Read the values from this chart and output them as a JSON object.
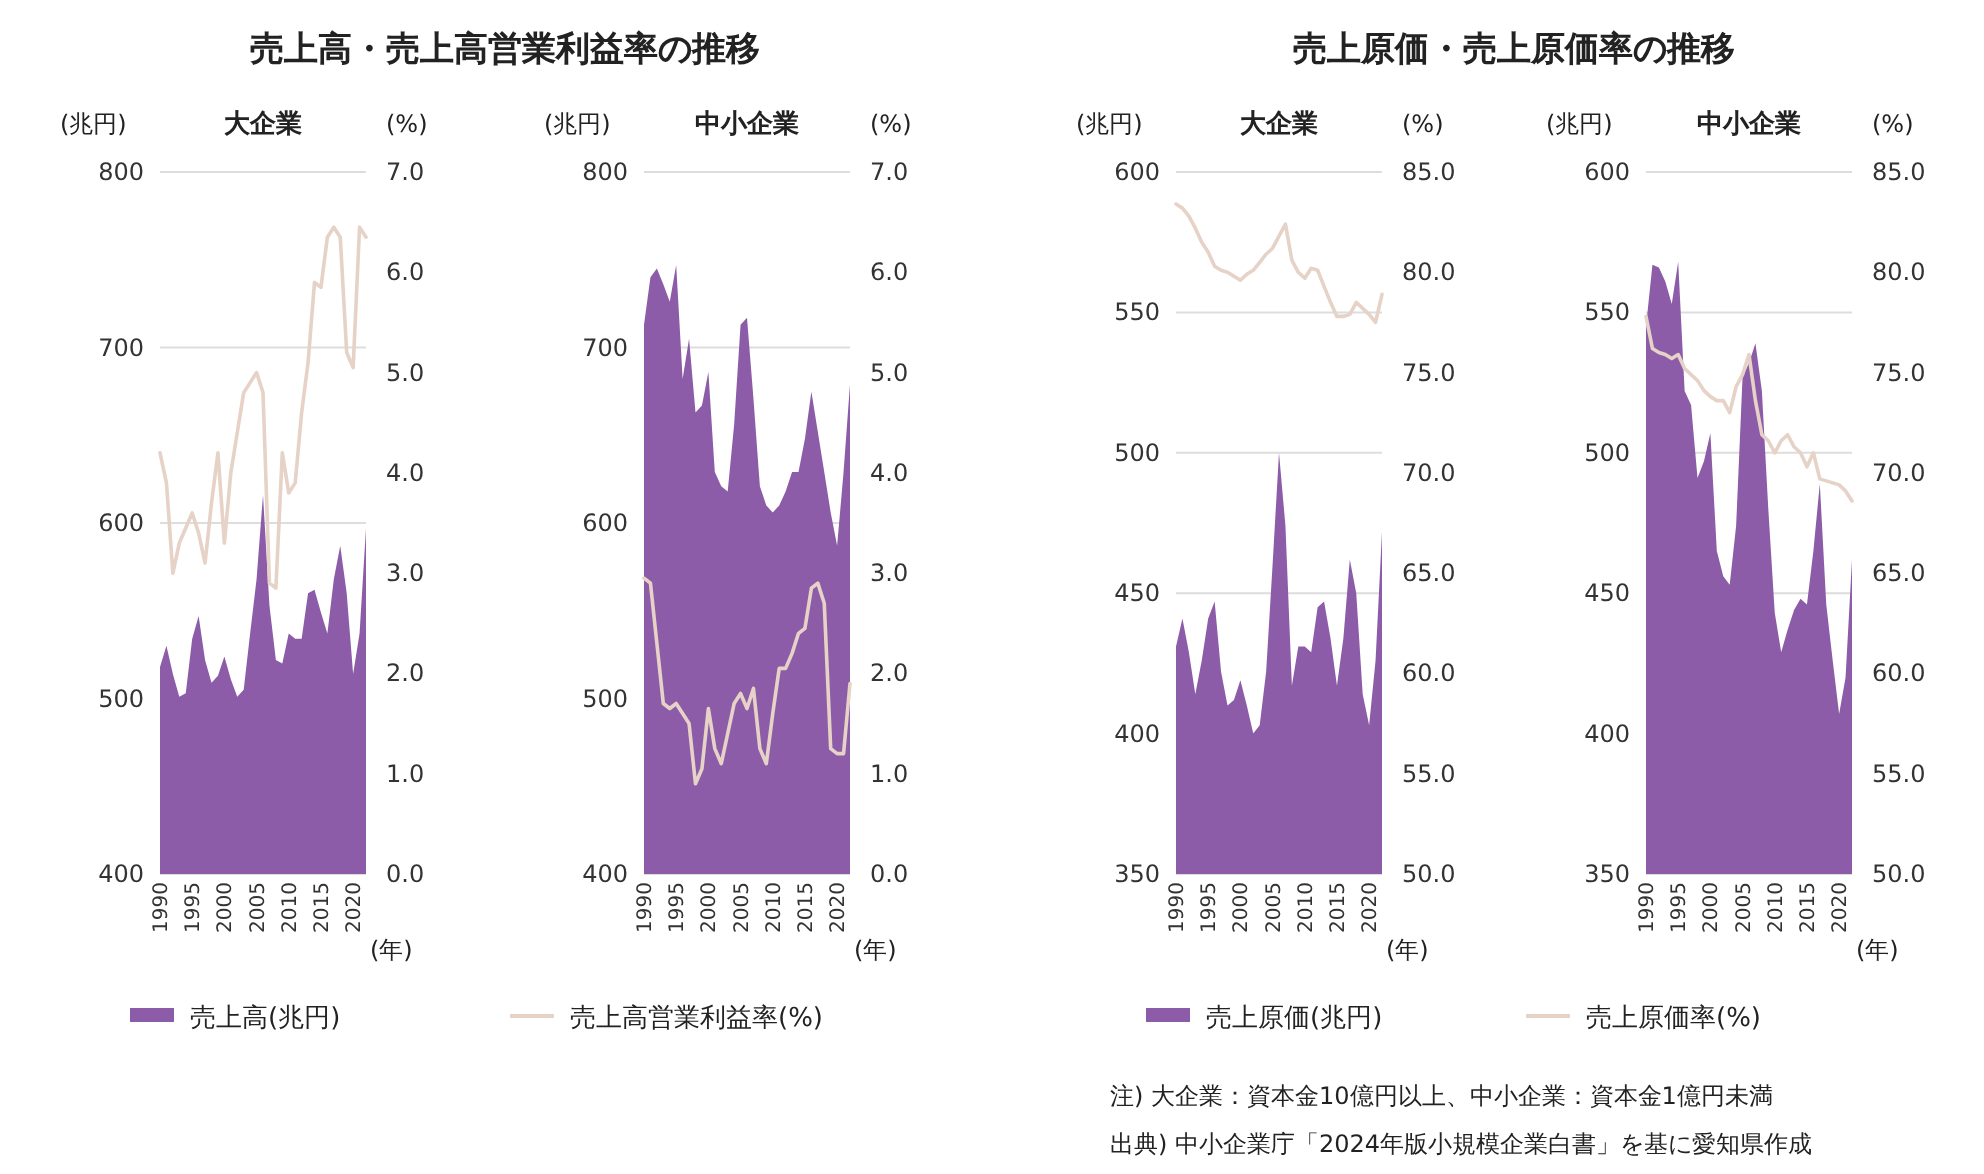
{
  "chart_data": [
    {
      "type": "area",
      "title": "売上高・売上高営業利益率の推移",
      "subtitle": "大企業",
      "ylabel": "(兆円)",
      "y2label": "(%)",
      "xlabel": "(年)",
      "x": [
        1990,
        1991,
        1992,
        1993,
        1994,
        1995,
        1996,
        1997,
        1998,
        1999,
        2000,
        2001,
        2002,
        2003,
        2004,
        2005,
        2006,
        2007,
        2008,
        2009,
        2010,
        2011,
        2012,
        2013,
        2014,
        2015,
        2016,
        2017,
        2018,
        2019,
        2020,
        2021,
        2022
      ],
      "xlim": [
        1990,
        2022
      ],
      "xticks": [
        1990,
        1995,
        2000,
        2005,
        2010,
        2015,
        2020
      ],
      "ylim": [
        400,
        800
      ],
      "yticks": [
        400,
        500,
        600,
        700,
        800
      ],
      "y2lim": [
        0,
        7
      ],
      "y2ticks": [
        {
          "value": 0,
          "label": "0.0"
        },
        {
          "value": 1,
          "label": "1.0"
        },
        {
          "value": 2,
          "label": "2.0"
        },
        {
          "value": 3,
          "label": "3.0"
        },
        {
          "value": 4,
          "label": "4.0"
        },
        {
          "value": 5,
          "label": "5.0"
        },
        {
          "value": 6,
          "label": "6.0"
        },
        {
          "value": 7,
          "label": "7.0"
        }
      ],
      "grid": "y",
      "legend": "bottom",
      "series": [
        {
          "name": "売上高(兆円)",
          "color": "#8c5ca8",
          "values": [
            518,
            530,
            514,
            501,
            503,
            534,
            547,
            522,
            509,
            513,
            524,
            511,
            501,
            505,
            537,
            568,
            616,
            553,
            522,
            520,
            537,
            534,
            534,
            560,
            562,
            549,
            537,
            568,
            587,
            560,
            514,
            537,
            597
          ]
        },
        {
          "name": "売上高営業利益率(%)",
          "type": "line",
          "axis": "y2",
          "color": "#e6d2c6",
          "values": [
            4.2,
            3.9,
            3.0,
            3.3,
            3.45,
            3.6,
            3.4,
            3.1,
            3.7,
            4.2,
            3.3,
            4.0,
            4.4,
            4.8,
            4.9,
            5.0,
            4.8,
            2.9,
            2.85,
            4.2,
            3.8,
            3.9,
            4.6,
            5.1,
            5.9,
            5.85,
            6.35,
            6.45,
            6.35,
            5.2,
            5.05,
            6.45,
            6.35
          ]
        }
      ]
    },
    {
      "type": "area",
      "subtitle": "中小企業",
      "ylabel": "(兆円)",
      "y2label": "(%)",
      "xlabel": "(年)",
      "x": [
        1990,
        1991,
        1992,
        1993,
        1994,
        1995,
        1996,
        1997,
        1998,
        1999,
        2000,
        2001,
        2002,
        2003,
        2004,
        2005,
        2006,
        2007,
        2008,
        2009,
        2010,
        2011,
        2012,
        2013,
        2014,
        2015,
        2016,
        2017,
        2018,
        2019,
        2020,
        2021,
        2022
      ],
      "xlim": [
        1990,
        2022
      ],
      "xticks": [
        1990,
        1995,
        2000,
        2005,
        2010,
        2015,
        2020
      ],
      "ylim": [
        400,
        800
      ],
      "yticks": [
        400,
        500,
        600,
        700,
        800
      ],
      "y2lim": [
        0,
        7
      ],
      "y2ticks": [
        {
          "value": 0,
          "label": "0.0"
        },
        {
          "value": 1,
          "label": "1.0"
        },
        {
          "value": 2,
          "label": "2.0"
        },
        {
          "value": 3,
          "label": "3.0"
        },
        {
          "value": 4,
          "label": "4.0"
        },
        {
          "value": 5,
          "label": "5.0"
        },
        {
          "value": 6,
          "label": "6.0"
        },
        {
          "value": 7,
          "label": "7.0"
        }
      ],
      "grid": "y",
      "series": [
        {
          "color": "#8c5ca8",
          "values": [
            713,
            740,
            745,
            736,
            726,
            747,
            682,
            705,
            663,
            667,
            686,
            629,
            621,
            618,
            656,
            713,
            717,
            671,
            621,
            610,
            606,
            610,
            618,
            629,
            629,
            648,
            675,
            652,
            629,
            606,
            587,
            629,
            679
          ]
        },
        {
          "type": "line",
          "axis": "y2",
          "color": "#e6d2c6",
          "values": [
            2.95,
            2.9,
            2.3,
            1.7,
            1.65,
            1.7,
            1.6,
            1.5,
            0.9,
            1.05,
            1.65,
            1.25,
            1.1,
            1.4,
            1.7,
            1.8,
            1.65,
            1.85,
            1.25,
            1.1,
            1.6,
            2.05,
            2.05,
            2.2,
            2.4,
            2.45,
            2.85,
            2.9,
            2.7,
            1.25,
            1.2,
            1.2,
            1.9
          ]
        }
      ]
    },
    {
      "type": "area",
      "title": "売上原価・売上原価率の推移",
      "subtitle": "大企業",
      "ylabel": "(兆円)",
      "y2label": "(%)",
      "xlabel": "(年)",
      "x": [
        1990,
        1991,
        1992,
        1993,
        1994,
        1995,
        1996,
        1997,
        1998,
        1999,
        2000,
        2001,
        2002,
        2003,
        2004,
        2005,
        2006,
        2007,
        2008,
        2009,
        2010,
        2011,
        2012,
        2013,
        2014,
        2015,
        2016,
        2017,
        2018,
        2019,
        2020,
        2021,
        2022
      ],
      "xlim": [
        1990,
        2022
      ],
      "xticks": [
        1990,
        1995,
        2000,
        2005,
        2010,
        2015,
        2020
      ],
      "ylim": [
        350,
        600
      ],
      "yticks": [
        350,
        400,
        450,
        500,
        550,
        600
      ],
      "y2lim": [
        50,
        85
      ],
      "y2ticks": [
        {
          "value": 50,
          "label": "50.0"
        },
        {
          "value": 55,
          "label": "55.0"
        },
        {
          "value": 60,
          "label": "60.0"
        },
        {
          "value": 65,
          "label": "65.0"
        },
        {
          "value": 70,
          "label": "70.0"
        },
        {
          "value": 75,
          "label": "75.0"
        },
        {
          "value": 80,
          "label": "80.0"
        },
        {
          "value": 85,
          "label": "85.0"
        }
      ],
      "grid": "y",
      "legend": "bottom",
      "series": [
        {
          "name": "売上原価(兆円)",
          "color": "#8c5ca8",
          "values": [
            431,
            441,
            429,
            414,
            426,
            441,
            447,
            422,
            410,
            412,
            419,
            410,
            400,
            403,
            422,
            460,
            500,
            474,
            417,
            431,
            431,
            429,
            445,
            447,
            434,
            417,
            434,
            462,
            450,
            414,
            403,
            426,
            472
          ]
        },
        {
          "name": "売上原価率(%)",
          "type": "line",
          "axis": "y2",
          "color": "#e6d2c6",
          "values": [
            83.4,
            83.2,
            82.8,
            82.2,
            81.5,
            81.0,
            80.3,
            80.1,
            80.0,
            79.8,
            79.6,
            79.9,
            80.1,
            80.5,
            80.9,
            81.2,
            81.8,
            82.4,
            80.6,
            80.0,
            79.7,
            80.2,
            80.1,
            79.3,
            78.5,
            77.8,
            77.8,
            77.9,
            78.5,
            78.2,
            77.9,
            77.5,
            78.9
          ]
        }
      ]
    },
    {
      "type": "area",
      "subtitle": "中小企業",
      "ylabel": "(兆円)",
      "y2label": "(%)",
      "xlabel": "(年)",
      "x": [
        1990,
        1991,
        1992,
        1993,
        1994,
        1995,
        1996,
        1997,
        1998,
        1999,
        2000,
        2001,
        2002,
        2003,
        2004,
        2005,
        2006,
        2007,
        2008,
        2009,
        2010,
        2011,
        2012,
        2013,
        2014,
        2015,
        2016,
        2017,
        2018,
        2019,
        2020,
        2021,
        2022
      ],
      "xlim": [
        1990,
        2022
      ],
      "xticks": [
        1990,
        1995,
        2000,
        2005,
        2010,
        2015,
        2020
      ],
      "ylim": [
        350,
        600
      ],
      "yticks": [
        350,
        400,
        450,
        500,
        550,
        600
      ],
      "y2lim": [
        50,
        85
      ],
      "y2ticks": [
        {
          "value": 50,
          "label": "50.0"
        },
        {
          "value": 55,
          "label": "55.0"
        },
        {
          "value": 60,
          "label": "60.0"
        },
        {
          "value": 65,
          "label": "65.0"
        },
        {
          "value": 70,
          "label": "70.0"
        },
        {
          "value": 75,
          "label": "75.0"
        },
        {
          "value": 80,
          "label": "80.0"
        },
        {
          "value": 85,
          "label": "85.0"
        }
      ],
      "grid": "y",
      "annotations": [
        "注) 大企業：資本金10億円以上、中小企業：資本金1億円未満",
        "出典) 中小企業庁「2024年版小規模企業白書」を基に愛知県作成"
      ],
      "series": [
        {
          "color": "#8c5ca8",
          "values": [
            545,
            567,
            566,
            561,
            553,
            568,
            522,
            517,
            491,
            497,
            507,
            465,
            456,
            453,
            474,
            527,
            532,
            539,
            522,
            480,
            443,
            429,
            437,
            444,
            448,
            446,
            465,
            489,
            446,
            426,
            407,
            420,
            462
          ]
        },
        {
          "type": "line",
          "axis": "y2",
          "color": "#e6d2c6",
          "values": [
            77.8,
            76.2,
            76.0,
            75.9,
            75.7,
            75.9,
            75.2,
            74.9,
            74.6,
            74.1,
            73.8,
            73.6,
            73.6,
            73.0,
            74.3,
            74.9,
            75.9,
            73.6,
            71.9,
            71.6,
            71.0,
            71.6,
            71.9,
            71.3,
            71.0,
            70.3,
            71.0,
            69.7,
            69.6,
            69.5,
            69.4,
            69.1,
            68.6
          ]
        }
      ]
    }
  ]
}
